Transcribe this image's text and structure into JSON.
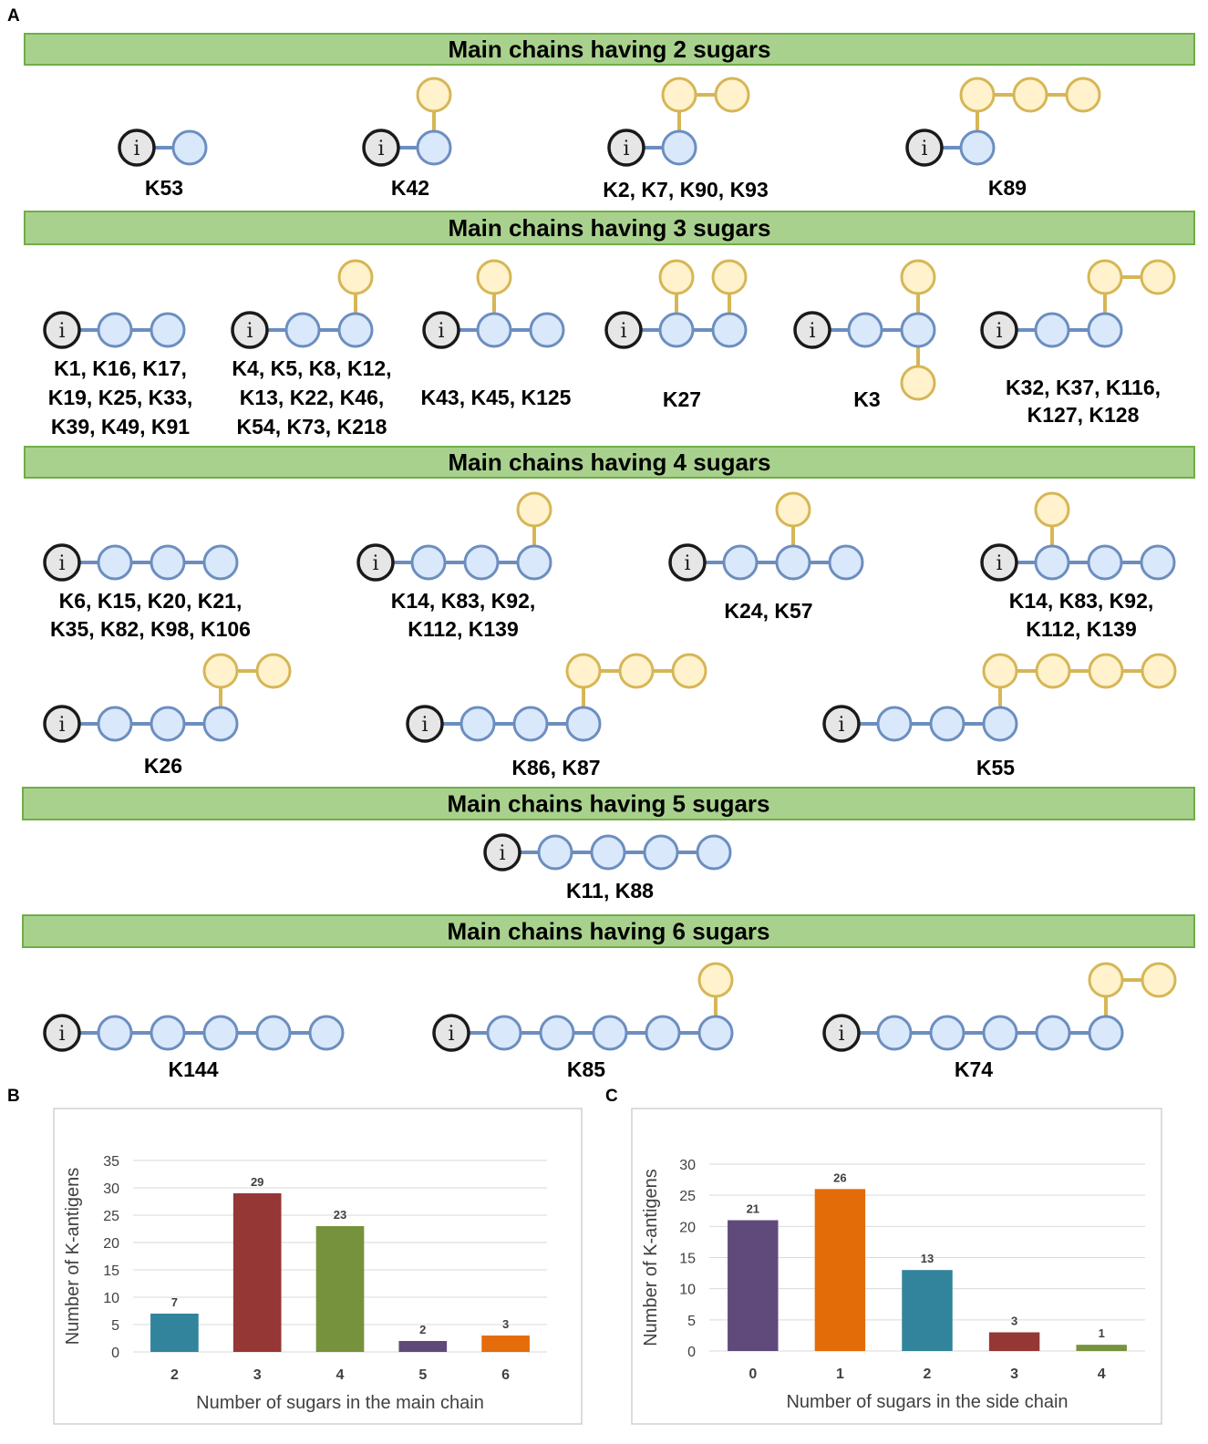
{
  "panel_letters": {
    "a": "A",
    "b": "B",
    "c": "C"
  },
  "colors": {
    "banner_fill": "#a9d18e",
    "banner_stroke": "#70ad47",
    "main_fill": "#dae8fc",
    "main_stroke": "#6c8ebf",
    "side_fill": "#fff2cc",
    "side_stroke": "#d6b656",
    "initial_fill": "#e6e6e6",
    "initial_stroke": "#1a1a1a"
  },
  "initial_symbol": "i",
  "banners": [
    {
      "text": "Main chains having 2 sugars"
    },
    {
      "text": "Main chains having 3 sugars"
    },
    {
      "text": "Main chains having 4 sugars"
    },
    {
      "text": "Main chains having 5 sugars"
    },
    {
      "text": "Main chains having 6 sugars"
    }
  ],
  "structures": [
    {
      "main": 1,
      "labels": [
        "K53"
      ]
    },
    {
      "main": 1,
      "labels": [
        "K42"
      ]
    },
    {
      "main": 1,
      "labels": [
        "K2, K7, K90, K93"
      ]
    },
    {
      "main": 1,
      "labels": [
        "K89"
      ]
    },
    {
      "main": 2,
      "labels": [
        "K1, K16, K17,",
        "K19, K25, K33,",
        "K39, K49, K91"
      ]
    },
    {
      "main": 2,
      "labels": [
        "K4, K5, K8, K12,",
        "K13, K22, K46,",
        "K54, K73, K218"
      ]
    },
    {
      "main": 2,
      "labels": [
        "K43, K45, K125"
      ]
    },
    {
      "main": 2,
      "labels": [
        "K27"
      ]
    },
    {
      "main": 2,
      "labels": [
        "K3"
      ]
    },
    {
      "main": 2,
      "labels": [
        "K32, K37, K116,",
        "K127, K128"
      ]
    },
    {
      "main": 3,
      "labels": [
        "K6, K15, K20, K21,",
        "K35, K82, K98, K106"
      ]
    },
    {
      "main": 3,
      "labels": [
        "K14, K83, K92,",
        "K112, K139"
      ]
    },
    {
      "main": 3,
      "labels": [
        "K24, K57"
      ]
    },
    {
      "main": 3,
      "labels": [
        "K14, K83, K92,",
        "K112, K139"
      ]
    },
    {
      "main": 3,
      "labels": [
        "K26"
      ]
    },
    {
      "main": 3,
      "labels": [
        "K86, K87"
      ]
    },
    {
      "main": 3,
      "labels": [
        "K55"
      ]
    },
    {
      "main": 4,
      "labels": [
        "K11, K88"
      ]
    },
    {
      "main": 5,
      "labels": [
        "K144"
      ]
    },
    {
      "main": 5,
      "labels": [
        "K85"
      ]
    },
    {
      "main": 5,
      "labels": [
        "K74"
      ]
    }
  ],
  "chart_data": [
    {
      "type": "bar",
      "categories": [
        "2",
        "3",
        "4",
        "5",
        "6"
      ],
      "values": [
        7,
        29,
        23,
        2,
        3
      ],
      "colors": [
        "#31849b",
        "#953735",
        "#76923c",
        "#5f497a",
        "#e46c0a"
      ],
      "data_labels": [
        "7",
        "29",
        "23",
        "2",
        "3"
      ],
      "title": "",
      "xlabel": "Number of sugars in the main chain",
      "ylabel": "Number of K-antigens",
      "ylim": [
        0,
        35
      ],
      "yticks": [
        "0",
        "5",
        "10",
        "15",
        "20",
        "25",
        "30",
        "35"
      ],
      "grid": true
    },
    {
      "type": "bar",
      "categories": [
        "0",
        "1",
        "2",
        "3",
        "4"
      ],
      "values": [
        21,
        26,
        13,
        3,
        1
      ],
      "colors": [
        "#604a7b",
        "#e36c09",
        "#31849b",
        "#953735",
        "#76923c"
      ],
      "data_labels": [
        "21",
        "26",
        "13",
        "3",
        "1"
      ],
      "title": "",
      "xlabel": "Number of sugars in the side chain",
      "ylabel": "Number of K-antigens",
      "ylim": [
        0,
        30
      ],
      "yticks": [
        "0",
        "5",
        "10",
        "15",
        "20",
        "25",
        "30"
      ],
      "grid": true
    }
  ]
}
